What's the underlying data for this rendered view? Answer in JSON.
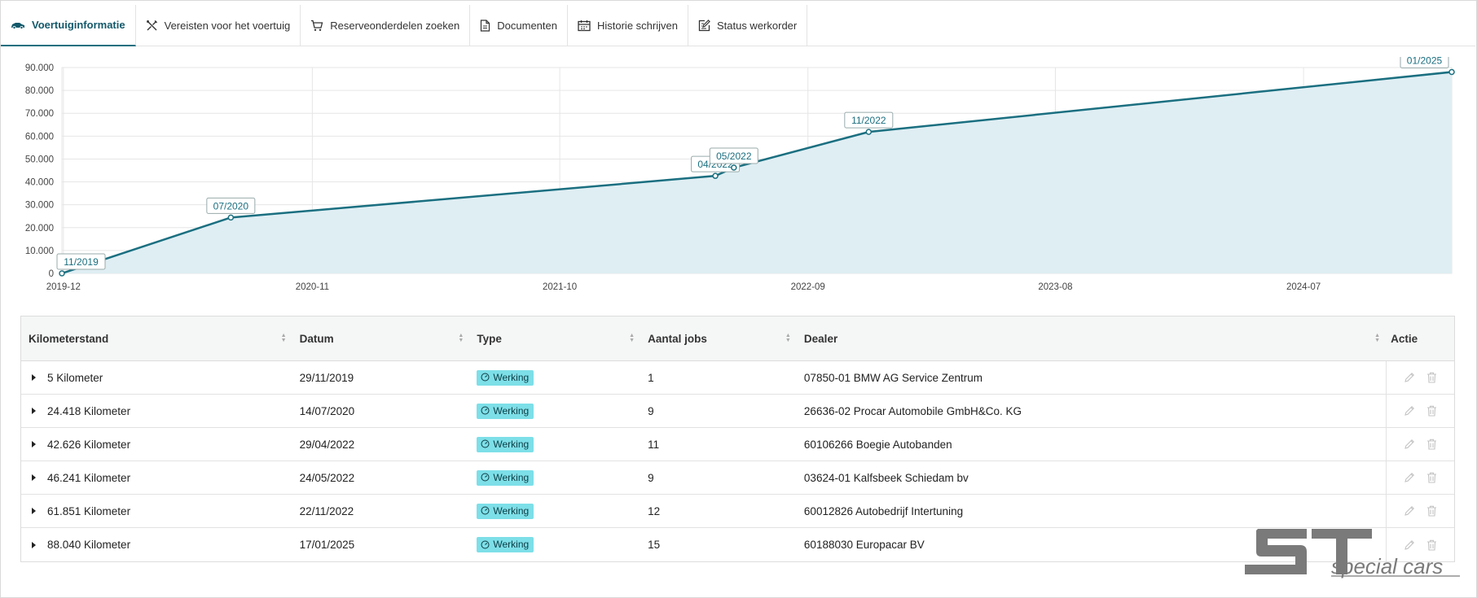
{
  "tabs": [
    {
      "label": "Voertuiginformatie",
      "icon": "car-icon",
      "active": true
    },
    {
      "label": "Vereisten voor het voertuig",
      "icon": "tools-icon",
      "active": false
    },
    {
      "label": "Reserveonderdelen zoeken",
      "icon": "cart-icon",
      "active": false
    },
    {
      "label": "Documenten",
      "icon": "document-icon",
      "active": false
    },
    {
      "label": "Historie schrijven",
      "icon": "calendar-icon",
      "active": false
    },
    {
      "label": "Status werkorder",
      "icon": "edit-icon",
      "active": false
    }
  ],
  "chart_data": {
    "type": "area",
    "x": [
      "2019-11-29",
      "2020-07-14",
      "2022-04-29",
      "2022-05-24",
      "2022-11-22",
      "2025-01-17"
    ],
    "y": [
      5,
      24418,
      42626,
      46241,
      61851,
      88040
    ],
    "point_labels": [
      "11/2019",
      "07/2020",
      "04/2022",
      "05/2022",
      "11/2022",
      "01/2025"
    ],
    "x_ticks": [
      "2019-12",
      "2020-11",
      "2021-10",
      "2022-09",
      "2023-08",
      "2024-07"
    ],
    "y_ticks": [
      "0",
      "10.000",
      "20.000",
      "30.000",
      "40.000",
      "50.000",
      "60.000",
      "70.000",
      "80.000",
      "90.000"
    ],
    "ylim": [
      0,
      90000
    ],
    "grid": true,
    "line_color": "#1a6f80",
    "fill_color": "#dfeef3"
  },
  "table": {
    "headers": [
      "Kilometerstand",
      "Datum",
      "Type",
      "Aantal jobs",
      "Dealer",
      "Actie"
    ],
    "rows": [
      {
        "km": "5 Kilometer",
        "date": "29/11/2019",
        "type": "Werking",
        "jobs": "1",
        "dealer": "07850-01 BMW AG Service Zentrum"
      },
      {
        "km": "24.418 Kilometer",
        "date": "14/07/2020",
        "type": "Werking",
        "jobs": "9",
        "dealer": "26636-02 Procar Automobile GmbH&Co. KG"
      },
      {
        "km": "42.626 Kilometer",
        "date": "29/04/2022",
        "type": "Werking",
        "jobs": "11",
        "dealer": "60106266 Boegie Autobanden"
      },
      {
        "km": "46.241 Kilometer",
        "date": "24/05/2022",
        "type": "Werking",
        "jobs": "9",
        "dealer": "03624-01 Kalfsbeek Schiedam bv"
      },
      {
        "km": "61.851 Kilometer",
        "date": "22/11/2022",
        "type": "Werking",
        "jobs": "12",
        "dealer": "60012826 Autobedrijf Intertuning"
      },
      {
        "km": "88.040 Kilometer",
        "date": "17/01/2025",
        "type": "Werking",
        "jobs": "15",
        "dealer": "60188030 Europacar BV"
      }
    ]
  },
  "logo": {
    "mark": "ST",
    "text": "special cars"
  }
}
